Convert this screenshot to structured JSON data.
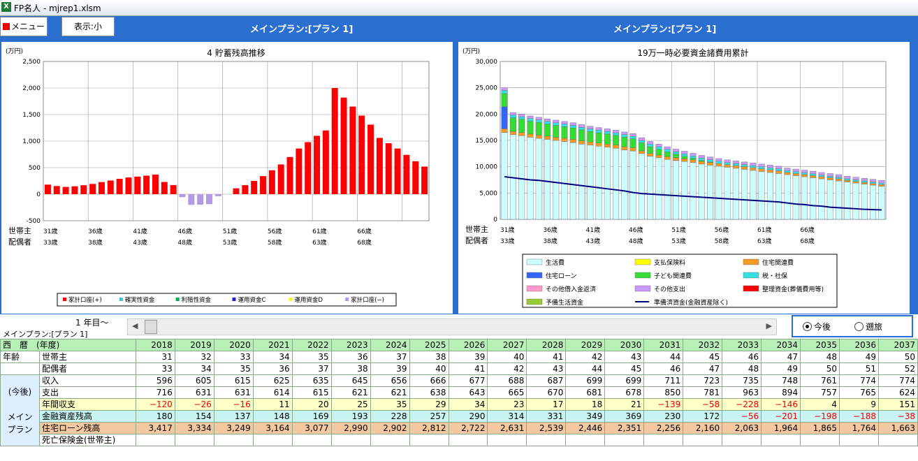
{
  "window_title": "FP名人 - mjrep1.xlsm",
  "menu_label": "メニュー",
  "view_label": "表示:小",
  "plan_title_left": "メインプラン:[プラン 1]",
  "plan_title_right": "メインプラン:[プラン 1]",
  "age_labels": {
    "main": "世帯主",
    "spouse": "配偶者"
  },
  "chart_data": [
    {
      "type": "bar",
      "title": "4 貯蓄残高推移",
      "ylabel": "(万円)",
      "ylim": [
        -500,
        2500
      ],
      "yticks": [
        -500,
        0,
        500,
        1000,
        1500,
        2000,
        2500
      ],
      "ytick_labels": [
        "-500",
        "0",
        "500",
        "1,000",
        "1,500",
        "2,000",
        "2,500"
      ],
      "x_age_main_labels": [
        "31歳",
        "36歳",
        "41歳",
        "46歳",
        "51歳",
        "56歳",
        "61歳",
        "66歳"
      ],
      "x_age_spouse_labels": [
        "33歳",
        "38歳",
        "43歳",
        "48歳",
        "53歳",
        "58歳",
        "63歳",
        "68歳"
      ],
      "grid": true,
      "legend_position": "bottom",
      "legend": [
        {
          "name": "家計口座(+)",
          "color": "#ff0000"
        },
        {
          "name": "確実性資金",
          "color": "#33cccc"
        },
        {
          "name": "利殖性資金",
          "color": "#00b050"
        },
        {
          "name": "運用資金C",
          "color": "#1f1fd0"
        },
        {
          "name": "運用資金D",
          "color": "#ffff00"
        },
        {
          "name": "家計口座(−)",
          "color": "#b399e6"
        }
      ],
      "series": [
        {
          "name": "家計口座(+)",
          "color": "#ff0000",
          "values": [
            180,
            154,
            137,
            148,
            169,
            193,
            228,
            257,
            290,
            314,
            331,
            349,
            369,
            230,
            172,
            0,
            0,
            0,
            0,
            0,
            0,
            110,
            170,
            250,
            340,
            450,
            560,
            700,
            860,
            980,
            1100,
            1200,
            2000,
            1820,
            1650,
            1480,
            1310,
            1060,
            960,
            860,
            740,
            620,
            520
          ]
        },
        {
          "name": "家計口座(−)",
          "color": "#b399e6",
          "values": [
            0,
            0,
            0,
            0,
            0,
            0,
            0,
            0,
            0,
            0,
            0,
            0,
            0,
            0,
            0,
            -56,
            -201,
            -198,
            -188,
            -38,
            0,
            0,
            0,
            0,
            0,
            0,
            0,
            0,
            0,
            0,
            0,
            0,
            0,
            0,
            0,
            0,
            0,
            0,
            0,
            0,
            0,
            0,
            0
          ]
        }
      ]
    },
    {
      "type": "bar",
      "stacked": true,
      "title": "19万一時必要資金諸費用累計",
      "ylabel": "(万円)",
      "ylim": [
        0,
        30000
      ],
      "yticks": [
        0,
        5000,
        10000,
        15000,
        20000,
        25000,
        30000
      ],
      "ytick_labels": [
        "0",
        "5,000",
        "10,000",
        "15,000",
        "20,000",
        "25,000",
        "30,000"
      ],
      "x_age_main_labels": [
        "31歳",
        "36歳",
        "41歳",
        "46歳",
        "51歳",
        "56歳",
        "61歳",
        "66歳"
      ],
      "x_age_spouse_labels": [
        "33歳",
        "38歳",
        "43歳",
        "48歳",
        "53歳",
        "58歳",
        "63歳",
        "68歳"
      ],
      "grid": true,
      "legend_position": "bottom",
      "legend": [
        {
          "name": "生活費",
          "color": "#ccffff",
          "kind": "bar"
        },
        {
          "name": "支払保険料",
          "color": "#ffff00",
          "kind": "bar"
        },
        {
          "name": "住宅関連費",
          "color": "#f59a23",
          "kind": "bar"
        },
        {
          "name": "住宅ローン",
          "color": "#3366ff",
          "kind": "bar"
        },
        {
          "name": "子ども関連費",
          "color": "#33dd33",
          "kind": "bar"
        },
        {
          "name": "税・社保",
          "color": "#33e0e0",
          "kind": "bar"
        },
        {
          "name": "その他借入金返済",
          "color": "#ff99cc",
          "kind": "bar"
        },
        {
          "name": "その他支出",
          "color": "#cc99ff",
          "kind": "bar"
        },
        {
          "name": "整理資金(葬儀費用等)",
          "color": "#ff0000",
          "kind": "bar"
        },
        {
          "name": "予備生活資金",
          "color": "#99cc33",
          "kind": "bar"
        },
        {
          "name": "準備済資金(金融資産除く)",
          "color": "#000080",
          "kind": "line"
        }
      ],
      "series": [
        {
          "name": "生活費",
          "color": "#ccffff",
          "values": [
            16500,
            16100,
            15900,
            15600,
            15400,
            15200,
            15000,
            14800,
            14600,
            14300,
            14100,
            13900,
            13700,
            13500,
            13200,
            13000,
            12500,
            12000,
            11700,
            11400,
            11200,
            11000,
            10800,
            10500,
            10300,
            10100,
            9900,
            9700,
            9500,
            9300,
            9100,
            8900,
            8700,
            8500,
            8300,
            8100,
            7900,
            7700,
            7500,
            7300,
            7100,
            6900,
            6700,
            6500,
            6300
          ]
        },
        {
          "name": "住宅関連費",
          "color": "#f59a23",
          "values": [
            700,
            600,
            600,
            600,
            600,
            600,
            600,
            600,
            600,
            600,
            600,
            600,
            600,
            600,
            600,
            600,
            500,
            500,
            500,
            500,
            500,
            500,
            500,
            500,
            500,
            500,
            500,
            500,
            500,
            500,
            500,
            500,
            500,
            400,
            400,
            400,
            400,
            400,
            400,
            400,
            300,
            300,
            300,
            300,
            300
          ]
        },
        {
          "name": "住宅ローン",
          "color": "#3366ff",
          "values": [
            4200,
            0,
            0,
            0,
            0,
            0,
            0,
            0,
            0,
            0,
            0,
            0,
            0,
            0,
            0,
            0,
            0,
            0,
            0,
            0,
            0,
            0,
            0,
            0,
            0,
            0,
            0,
            0,
            0,
            0,
            0,
            0,
            0,
            0,
            0,
            0,
            0,
            0,
            0,
            0,
            0,
            0,
            0,
            0,
            0
          ]
        },
        {
          "name": "子ども関連費",
          "color": "#33dd33",
          "values": [
            2500,
            2600,
            2500,
            2450,
            2400,
            2300,
            2250,
            2200,
            2150,
            2100,
            2000,
            1950,
            1900,
            1850,
            1800,
            1700,
            1500,
            1300,
            1100,
            900,
            700,
            500,
            300,
            200,
            100,
            0,
            0,
            0,
            0,
            0,
            0,
            0,
            0,
            0,
            0,
            0,
            0,
            0,
            0,
            0,
            0,
            0,
            0,
            0,
            0
          ]
        },
        {
          "name": "税・社保",
          "color": "#33e0e0",
          "values": [
            600,
            500,
            500,
            500,
            500,
            500,
            500,
            500,
            500,
            500,
            500,
            500,
            500,
            500,
            500,
            500,
            500,
            500,
            500,
            500,
            450,
            450,
            450,
            450,
            450,
            450,
            400,
            400,
            400,
            400,
            400,
            400,
            400,
            350,
            350,
            350,
            350,
            300,
            300,
            300,
            300,
            300,
            300,
            300,
            300
          ]
        },
        {
          "name": "その他支出",
          "color": "#cc99ff",
          "values": [
            500,
            500,
            500,
            500,
            500,
            500,
            500,
            500,
            500,
            500,
            500,
            500,
            500,
            500,
            500,
            500,
            500,
            500,
            500,
            500,
            500,
            500,
            500,
            500,
            500,
            500,
            500,
            500,
            500,
            500,
            500,
            500,
            500,
            500,
            500,
            500,
            500,
            500,
            500,
            500,
            500,
            500,
            500,
            500,
            500
          ]
        }
      ],
      "line_series": {
        "name": "準備済資金(金融資産除く)",
        "color": "#000080",
        "values": [
          8100,
          7900,
          7700,
          7500,
          7400,
          7200,
          7000,
          6800,
          6600,
          6400,
          6200,
          6000,
          5800,
          5600,
          5400,
          5100,
          4900,
          4800,
          4700,
          4600,
          4500,
          4400,
          4300,
          4200,
          4100,
          4000,
          3900,
          3800,
          3700,
          3600,
          3500,
          3400,
          3300,
          3100,
          2900,
          2800,
          2600,
          2500,
          2300,
          2200,
          2100,
          2000,
          1900,
          1850,
          1800
        ]
      }
    }
  ],
  "lower": {
    "year_label": "1 年目〜",
    "sub_plan": "メインプラン:[プラン 1]",
    "radio_future": "今後",
    "radio_past": "遡旅",
    "header_label": "西　暦　(年度)",
    "years": [
      "2018",
      "2019",
      "2020",
      "2021",
      "2022",
      "2023",
      "2024",
      "2025",
      "2026",
      "2027",
      "2028",
      "2029",
      "2030",
      "2031",
      "2032",
      "2033",
      "2034",
      "2035",
      "2036",
      "2037"
    ],
    "age_group": "年齢",
    "age_main_label": "世帯主",
    "age_spouse_label": "配偶者",
    "age_main": [
      "31",
      "32",
      "33",
      "34",
      "35",
      "36",
      "37",
      "38",
      "39",
      "40",
      "41",
      "42",
      "43",
      "44",
      "45",
      "46",
      "47",
      "48",
      "49",
      "50"
    ],
    "age_spouse": [
      "33",
      "34",
      "35",
      "36",
      "37",
      "38",
      "39",
      "40",
      "41",
      "42",
      "43",
      "44",
      "45",
      "46",
      "47",
      "48",
      "49",
      "50",
      "51",
      "52"
    ],
    "group_future": "(今後)",
    "group_main_1": "メイン",
    "group_main_2": "プラン",
    "income_label": "収入",
    "income": [
      "596",
      "605",
      "615",
      "625",
      "635",
      "645",
      "656",
      "666",
      "677",
      "688",
      "687",
      "699",
      "699",
      "711",
      "723",
      "735",
      "748",
      "761",
      "774",
      "774"
    ],
    "expense_label": "支出",
    "expense": [
      "716",
      "631",
      "631",
      "614",
      "615",
      "621",
      "621",
      "638",
      "643",
      "665",
      "670",
      "681",
      "678",
      "850",
      "781",
      "963",
      "894",
      "757",
      "765",
      "624"
    ],
    "annual_label": "年間収支",
    "annual": [
      "−120",
      "−26",
      "−16",
      "11",
      "20",
      "25",
      "35",
      "29",
      "34",
      "23",
      "17",
      "18",
      "21",
      "−139",
      "−58",
      "−228",
      "−146",
      "4",
      "9",
      "151"
    ],
    "finance_label": "金融資産残高",
    "finance": [
      "180",
      "154",
      "137",
      "148",
      "169",
      "193",
      "228",
      "257",
      "290",
      "314",
      "331",
      "349",
      "369",
      "230",
      "172",
      "−56",
      "−201",
      "−198",
      "−188",
      "−38"
    ],
    "loan_label": "住宅ローン残高",
    "loan": [
      "3,417",
      "3,334",
      "3,249",
      "3,164",
      "3,077",
      "2,990",
      "2,902",
      "2,812",
      "2,722",
      "2,631",
      "2,539",
      "2,446",
      "2,351",
      "2,256",
      "2,160",
      "2,063",
      "1,964",
      "1,865",
      "1,764",
      "1,663"
    ],
    "death_label": "死亡保険金(世帯主)"
  }
}
